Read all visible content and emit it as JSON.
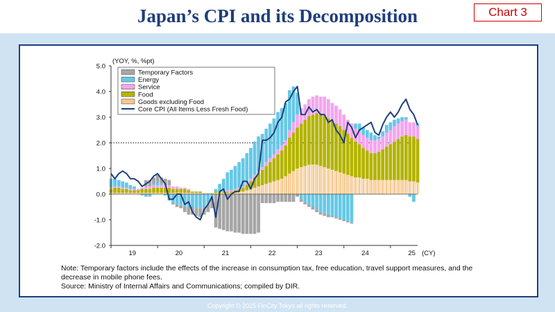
{
  "header": {
    "title": "Japan’s CPI and its Decomposition",
    "badge": "Chart 3"
  },
  "colors": {
    "temporary": "#a6a6a6",
    "energy": "#66c8e6",
    "service": "#f3a6ee",
    "food": "#b3b300",
    "goods": "#f6c88f",
    "core": "#1f3e7a",
    "frame": "#1f3e7a",
    "panel": "#cfe3f3"
  },
  "chart_data": {
    "type": "bar",
    "stacked": true,
    "yunit_label": "(YOY, %, %pt)",
    "xunit_label": "(CY)",
    "ylim": [
      -2.0,
      5.0
    ],
    "yticks": [
      "5.0",
      "4.0",
      "3.0",
      "2.0",
      "1.0",
      "0.0",
      "-1.0",
      "-2.0"
    ],
    "xticks": [
      "19",
      "20",
      "21",
      "22",
      "23",
      "24",
      "25"
    ],
    "reference_line": {
      "y": 2.0,
      "style": "dotted"
    },
    "legend_position": "top-left",
    "months": [
      "2019-01",
      "2019-02",
      "2019-03",
      "2019-04",
      "2019-05",
      "2019-06",
      "2019-07",
      "2019-08",
      "2019-09",
      "2019-10",
      "2019-11",
      "2019-12",
      "2020-01",
      "2020-02",
      "2020-03",
      "2020-04",
      "2020-05",
      "2020-06",
      "2020-07",
      "2020-08",
      "2020-09",
      "2020-10",
      "2020-11",
      "2020-12",
      "2021-01",
      "2021-02",
      "2021-03",
      "2021-04",
      "2021-05",
      "2021-06",
      "2021-07",
      "2021-08",
      "2021-09",
      "2021-10",
      "2021-11",
      "2021-12",
      "2022-01",
      "2022-02",
      "2022-03",
      "2022-04",
      "2022-05",
      "2022-06",
      "2022-07",
      "2022-08",
      "2022-09",
      "2022-10",
      "2022-11",
      "2022-12",
      "2023-01",
      "2023-02",
      "2023-03",
      "2023-04",
      "2023-05",
      "2023-06",
      "2023-07",
      "2023-08",
      "2023-09",
      "2023-10",
      "2023-11",
      "2023-12",
      "2024-01",
      "2024-02",
      "2024-03",
      "2024-04",
      "2024-05",
      "2024-06",
      "2024-07",
      "2024-08",
      "2024-09",
      "2024-10",
      "2024-11",
      "2024-12",
      "2025-01",
      "2025-02",
      "2025-03",
      "2025-04",
      "2025-05",
      "2025-06",
      "2025-07",
      "2025-08"
    ],
    "series": [
      {
        "name": "Temporary Factors",
        "values": [
          0,
          0,
          0,
          0,
          0,
          0,
          0,
          0,
          0,
          0.25,
          0.25,
          0.25,
          0.25,
          0.25,
          0.25,
          0.2,
          -0.05,
          -0.1,
          -0.1,
          -0.2,
          -0.3,
          -0.3,
          -0.3,
          -0.35,
          -0.3,
          -0.3,
          -0.35,
          -1.3,
          -1.35,
          -1.4,
          -1.45,
          -1.45,
          -1.5,
          -1.5,
          -1.55,
          -1.55,
          -1.55,
          -1.55,
          -1.5,
          -0.35,
          -0.35,
          -0.35,
          -0.35,
          -0.3,
          -0.3,
          -0.3,
          -0.3,
          -0.3,
          -0.1,
          -0.1,
          -0.1,
          -0.1,
          -0.1,
          -0.1,
          -0.1,
          -0.1,
          -0.1,
          -0.05,
          -0.05,
          -0.05,
          -0.05,
          -0.05,
          -0.05,
          0,
          0,
          0,
          0,
          0,
          0,
          0,
          0,
          0,
          0,
          0,
          0,
          0,
          0,
          0,
          0,
          0
        ]
      },
      {
        "name": "Energy",
        "values": [
          0.35,
          0.3,
          0.25,
          0.25,
          0.2,
          0.15,
          0.1,
          0.0,
          -0.05,
          -0.1,
          -0.1,
          0.05,
          0.15,
          0.05,
          -0.05,
          -0.25,
          -0.35,
          -0.4,
          -0.45,
          -0.5,
          -0.5,
          -0.5,
          -0.55,
          -0.55,
          -0.5,
          -0.4,
          -0.2,
          0.1,
          0.3,
          0.5,
          0.7,
          0.8,
          0.9,
          1.0,
          1.1,
          1.15,
          1.2,
          1.3,
          1.35,
          1.3,
          1.3,
          1.35,
          1.4,
          1.45,
          1.45,
          1.45,
          1.55,
          1.4,
          0.85,
          -0.2,
          -0.3,
          -0.4,
          -0.5,
          -0.6,
          -0.7,
          -0.75,
          -0.8,
          -0.85,
          -0.9,
          -0.95,
          -1.0,
          -1.05,
          -1.1,
          0.2,
          0.3,
          0.3,
          0.3,
          0.3,
          0.2,
          0.1,
          0.2,
          0.3,
          0.3,
          0.25,
          0.2,
          0.15,
          0.1,
          -0.1,
          -0.3,
          0.1
        ]
      },
      {
        "name": "Service",
        "values": [
          0.05,
          0.05,
          0.05,
          0.05,
          0.05,
          0.05,
          0.05,
          0.05,
          0.05,
          0.1,
          0.1,
          0.1,
          0.1,
          0.1,
          0.1,
          0.1,
          0.1,
          0.1,
          0.05,
          0.05,
          0.05,
          0.0,
          0.0,
          0.0,
          0.0,
          0.0,
          0.0,
          0.0,
          0.0,
          0.0,
          0.05,
          0.05,
          0.05,
          0.05,
          0.05,
          0.1,
          0.1,
          0.1,
          0.1,
          0.1,
          0.15,
          0.15,
          0.15,
          0.2,
          0.2,
          0.2,
          0.3,
          0.4,
          0.5,
          0.6,
          0.6,
          0.65,
          0.7,
          0.7,
          0.7,
          0.75,
          0.75,
          0.7,
          0.7,
          0.65,
          0.6,
          0.55,
          0.55,
          0.5,
          0.5,
          0.5,
          0.5,
          0.5,
          0.5,
          0.5,
          0.5,
          0.55,
          0.55,
          0.6,
          0.6,
          0.6,
          0.6,
          0.55,
          0.55,
          0.5
        ]
      },
      {
        "name": "Food",
        "values": [
          0.15,
          0.2,
          0.2,
          0.15,
          0.15,
          0.1,
          0.1,
          0.1,
          0.15,
          0.15,
          0.15,
          0.2,
          0.2,
          0.2,
          0.2,
          0.2,
          0.15,
          0.15,
          0.15,
          0.15,
          0.1,
          0.05,
          0.05,
          0.05,
          0.0,
          0.0,
          0.0,
          0.05,
          0.05,
          0.05,
          0.05,
          0.05,
          0.1,
          0.1,
          0.15,
          0.2,
          0.3,
          0.4,
          0.5,
          0.6,
          0.7,
          0.8,
          0.9,
          1.0,
          1.1,
          1.2,
          1.4,
          1.5,
          1.6,
          1.7,
          1.8,
          1.9,
          1.95,
          2.0,
          2.0,
          2.0,
          1.95,
          1.9,
          1.85,
          1.8,
          1.7,
          1.6,
          1.5,
          1.4,
          1.3,
          1.2,
          1.1,
          1.05,
          1.05,
          1.1,
          1.2,
          1.3,
          1.4,
          1.5,
          1.6,
          1.7,
          1.75,
          1.75,
          1.75,
          1.7
        ]
      },
      {
        "name": "Goods excluding Food",
        "values": [
          0.05,
          0.05,
          0.05,
          0.05,
          0.05,
          0.05,
          0.05,
          0.05,
          0.05,
          0.05,
          0.05,
          0.05,
          0.05,
          0.05,
          0.05,
          0.05,
          0.05,
          0.05,
          0.05,
          0.05,
          0.05,
          0.05,
          0.05,
          0.05,
          0.05,
          0.05,
          0.05,
          0.05,
          0.05,
          0.05,
          0.05,
          0.05,
          0.05,
          0.1,
          0.1,
          0.15,
          0.2,
          0.25,
          0.3,
          0.35,
          0.4,
          0.45,
          0.5,
          0.55,
          0.6,
          0.7,
          0.8,
          0.9,
          1.0,
          1.05,
          1.1,
          1.15,
          1.15,
          1.15,
          1.1,
          1.05,
          1.0,
          0.95,
          0.9,
          0.85,
          0.8,
          0.75,
          0.7,
          0.65,
          0.65,
          0.6,
          0.6,
          0.55,
          0.55,
          0.55,
          0.55,
          0.55,
          0.55,
          0.55,
          0.55,
          0.55,
          0.55,
          0.5,
          0.5,
          0.45
        ]
      },
      {
        "name": "Core CPI (All Items Less Fresh Food)",
        "type": "line",
        "values": [
          0.8,
          0.6,
          0.8,
          0.9,
          0.8,
          0.6,
          0.6,
          0.5,
          0.3,
          0.4,
          0.5,
          0.7,
          0.8,
          0.6,
          0.4,
          -0.2,
          -0.2,
          0.0,
          0.0,
          -0.4,
          -0.3,
          -0.7,
          -0.9,
          -1.0,
          -0.6,
          -0.4,
          -0.1,
          -0.9,
          0.1,
          0.2,
          -0.2,
          0.0,
          0.1,
          0.1,
          0.5,
          0.5,
          0.2,
          0.6,
          0.8,
          2.1,
          2.1,
          2.2,
          2.4,
          2.8,
          3.0,
          3.6,
          3.7,
          4.0,
          4.2,
          3.1,
          3.1,
          3.4,
          3.2,
          3.3,
          3.1,
          3.1,
          2.8,
          2.9,
          2.5,
          2.3,
          2.0,
          2.8,
          2.6,
          2.2,
          2.5,
          2.6,
          2.7,
          2.8,
          2.4,
          2.3,
          2.7,
          3.0,
          3.2,
          3.0,
          3.2,
          3.5,
          3.7,
          3.3,
          3.1,
          2.7
        ]
      }
    ]
  },
  "note": {
    "line1": "Note: Temporary factors include the effects of the increase in consumption tax, free education, travel support measures, and the",
    "line2": "decrease in mobile phone fees.",
    "line3": "Source: Ministry of Internal Affairs and Communications; compiled by DIR."
  },
  "footer": "Copyright © 2025 FinCity.Tokyo all rights reserved."
}
